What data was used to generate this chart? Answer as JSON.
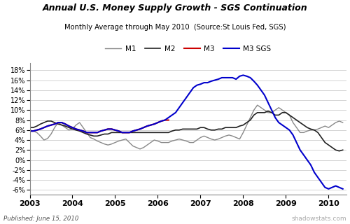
{
  "title": "Annual U.S. Money Supply Growth - SGS Continuation",
  "subtitle": "Monthly Average through May 2010  (Source:St Louis Fed, SGS)",
  "footer_left": "Published: June 15, 2010",
  "footer_right": "shadowstats.com",
  "yticks": [
    -6,
    -4,
    -2,
    0,
    2,
    4,
    6,
    8,
    10,
    12,
    14,
    16,
    18
  ],
  "ylim": [
    -7,
    19.5
  ],
  "xlim_start": 2003.0,
  "xlim_end": 2010.42,
  "xtick_labels": [
    "2003",
    "2004",
    "2005",
    "2006",
    "2007",
    "2008",
    "2009",
    "2010"
  ],
  "xtick_positions": [
    2003,
    2004,
    2005,
    2006,
    2007,
    2008,
    2009,
    2010
  ],
  "colors": {
    "M1": "#888888",
    "M2": "#222222",
    "M3": "#cc0000",
    "M3SGS": "#0000cc"
  },
  "M1": {
    "x": [
      2003.0,
      2003.083,
      2003.167,
      2003.25,
      2003.333,
      2003.417,
      2003.5,
      2003.583,
      2003.667,
      2003.75,
      2003.833,
      2003.917,
      2004.0,
      2004.083,
      2004.167,
      2004.25,
      2004.333,
      2004.417,
      2004.5,
      2004.583,
      2004.667,
      2004.75,
      2004.833,
      2004.917,
      2005.0,
      2005.083,
      2005.167,
      2005.25,
      2005.333,
      2005.417,
      2005.5,
      2005.583,
      2005.667,
      2005.75,
      2005.833,
      2005.917,
      2006.0,
      2006.083,
      2006.167,
      2006.25,
      2006.333,
      2006.417,
      2006.5,
      2006.583,
      2006.667,
      2006.75,
      2006.833,
      2006.917,
      2007.0,
      2007.083,
      2007.167,
      2007.25,
      2007.333,
      2007.417,
      2007.5,
      2007.583,
      2007.667,
      2007.75,
      2007.833,
      2007.917,
      2008.0,
      2008.083,
      2008.167,
      2008.25,
      2008.333,
      2008.417,
      2008.5,
      2008.583,
      2008.667,
      2008.75,
      2008.833,
      2008.917,
      2009.0,
      2009.083,
      2009.167,
      2009.25,
      2009.333,
      2009.417,
      2009.5,
      2009.583,
      2009.667,
      2009.75,
      2009.833,
      2009.917,
      2010.0,
      2010.083,
      2010.167,
      2010.25,
      2010.333
    ],
    "y": [
      6.0,
      5.8,
      5.5,
      4.8,
      4.0,
      4.3,
      5.2,
      6.5,
      7.5,
      7.0,
      6.5,
      6.0,
      6.2,
      7.0,
      7.5,
      6.5,
      5.5,
      4.5,
      4.2,
      3.8,
      3.5,
      3.2,
      3.0,
      3.2,
      3.5,
      3.8,
      4.0,
      4.2,
      3.5,
      2.8,
      2.5,
      2.2,
      2.5,
      3.0,
      3.5,
      4.0,
      3.8,
      3.5,
      3.5,
      3.5,
      3.8,
      4.0,
      4.2,
      4.0,
      3.8,
      3.5,
      3.5,
      4.0,
      4.5,
      4.8,
      4.5,
      4.2,
      4.0,
      4.2,
      4.5,
      4.8,
      5.0,
      4.8,
      4.5,
      4.2,
      5.5,
      7.0,
      8.5,
      10.0,
      11.0,
      10.5,
      10.0,
      9.5,
      9.5,
      10.0,
      10.5,
      10.0,
      9.5,
      9.0,
      7.5,
      6.5,
      5.5,
      5.5,
      5.8,
      6.0,
      6.0,
      6.2,
      6.5,
      6.8,
      6.5,
      7.0,
      7.5,
      7.8,
      7.5
    ]
  },
  "M2": {
    "x": [
      2003.0,
      2003.083,
      2003.167,
      2003.25,
      2003.333,
      2003.417,
      2003.5,
      2003.583,
      2003.667,
      2003.75,
      2003.833,
      2003.917,
      2004.0,
      2004.083,
      2004.167,
      2004.25,
      2004.333,
      2004.417,
      2004.5,
      2004.583,
      2004.667,
      2004.75,
      2004.833,
      2004.917,
      2005.0,
      2005.083,
      2005.167,
      2005.25,
      2005.333,
      2005.417,
      2005.5,
      2005.583,
      2005.667,
      2005.75,
      2005.833,
      2005.917,
      2006.0,
      2006.083,
      2006.167,
      2006.25,
      2006.333,
      2006.417,
      2006.5,
      2006.583,
      2006.667,
      2006.75,
      2006.833,
      2006.917,
      2007.0,
      2007.083,
      2007.167,
      2007.25,
      2007.333,
      2007.417,
      2007.5,
      2007.583,
      2007.667,
      2007.75,
      2007.833,
      2007.917,
      2008.0,
      2008.083,
      2008.167,
      2008.25,
      2008.333,
      2008.417,
      2008.5,
      2008.583,
      2008.667,
      2008.75,
      2008.833,
      2008.917,
      2009.0,
      2009.083,
      2009.167,
      2009.25,
      2009.333,
      2009.417,
      2009.5,
      2009.583,
      2009.667,
      2009.75,
      2009.833,
      2009.917,
      2010.0,
      2010.083,
      2010.167,
      2010.25,
      2010.333
    ],
    "y": [
      6.5,
      6.5,
      6.8,
      7.2,
      7.5,
      7.8,
      7.8,
      7.5,
      7.2,
      7.0,
      6.8,
      6.5,
      6.2,
      6.0,
      5.8,
      5.5,
      5.2,
      5.0,
      4.8,
      4.8,
      5.0,
      5.2,
      5.2,
      5.5,
      5.5,
      5.5,
      5.5,
      5.5,
      5.5,
      5.5,
      5.5,
      5.5,
      5.5,
      5.5,
      5.5,
      5.5,
      5.5,
      5.5,
      5.5,
      5.5,
      5.8,
      6.0,
      6.0,
      6.2,
      6.2,
      6.2,
      6.2,
      6.2,
      6.5,
      6.5,
      6.2,
      6.0,
      6.0,
      6.2,
      6.2,
      6.5,
      6.5,
      6.5,
      6.5,
      6.8,
      7.0,
      7.5,
      8.0,
      9.0,
      9.5,
      9.5,
      9.5,
      9.8,
      9.5,
      9.0,
      9.0,
      9.5,
      9.5,
      9.0,
      8.5,
      8.0,
      7.5,
      7.0,
      6.5,
      6.2,
      6.0,
      5.5,
      4.5,
      3.5,
      3.0,
      2.5,
      2.0,
      1.8,
      2.0
    ]
  },
  "M3": {
    "x": [
      2003.0,
      2003.083,
      2003.167,
      2003.25,
      2003.333,
      2003.417,
      2003.5,
      2003.583,
      2003.667,
      2003.75,
      2003.833,
      2003.917,
      2004.0,
      2004.083,
      2004.167,
      2004.25,
      2004.333,
      2004.417,
      2004.5,
      2004.583,
      2004.667,
      2004.75,
      2004.833,
      2004.917,
      2005.0,
      2005.083,
      2005.167,
      2005.25,
      2005.333,
      2005.417,
      2005.5,
      2005.583,
      2005.667,
      2005.75,
      2005.833,
      2005.917,
      2006.0,
      2006.083,
      2006.167,
      2006.25
    ],
    "y": [
      5.8,
      5.8,
      6.0,
      6.2,
      6.5,
      6.8,
      7.0,
      7.2,
      7.5,
      7.5,
      7.2,
      6.8,
      6.5,
      6.2,
      6.0,
      5.8,
      5.5,
      5.5,
      5.5,
      5.5,
      5.8,
      6.0,
      6.2,
      6.2,
      6.0,
      5.8,
      5.5,
      5.5,
      5.5,
      5.8,
      6.0,
      6.2,
      6.5,
      6.8,
      7.0,
      7.2,
      7.5,
      7.8,
      8.0,
      8.0
    ]
  },
  "M3SGS": {
    "x": [
      2003.0,
      2003.083,
      2003.167,
      2003.25,
      2003.333,
      2003.417,
      2003.5,
      2003.583,
      2003.667,
      2003.75,
      2003.833,
      2003.917,
      2004.0,
      2004.083,
      2004.167,
      2004.25,
      2004.333,
      2004.417,
      2004.5,
      2004.583,
      2004.667,
      2004.75,
      2004.833,
      2004.917,
      2005.0,
      2005.083,
      2005.167,
      2005.25,
      2005.333,
      2005.417,
      2005.5,
      2005.583,
      2005.667,
      2005.75,
      2005.833,
      2005.917,
      2006.0,
      2006.083,
      2006.167,
      2006.25,
      2006.333,
      2006.417,
      2006.5,
      2006.583,
      2006.667,
      2006.75,
      2006.833,
      2006.917,
      2007.0,
      2007.083,
      2007.167,
      2007.25,
      2007.333,
      2007.417,
      2007.5,
      2007.583,
      2007.667,
      2007.75,
      2007.833,
      2007.917,
      2008.0,
      2008.083,
      2008.167,
      2008.25,
      2008.333,
      2008.417,
      2008.5,
      2008.583,
      2008.667,
      2008.75,
      2008.833,
      2008.917,
      2009.0,
      2009.083,
      2009.167,
      2009.25,
      2009.333,
      2009.417,
      2009.5,
      2009.583,
      2009.667,
      2009.75,
      2009.833,
      2009.917,
      2010.0,
      2010.083,
      2010.167,
      2010.25,
      2010.333
    ],
    "y": [
      5.8,
      5.8,
      6.0,
      6.2,
      6.5,
      6.8,
      7.0,
      7.2,
      7.5,
      7.5,
      7.2,
      6.8,
      6.5,
      6.2,
      6.0,
      5.8,
      5.5,
      5.5,
      5.5,
      5.5,
      5.8,
      6.0,
      6.2,
      6.2,
      6.0,
      5.8,
      5.5,
      5.5,
      5.5,
      5.8,
      6.0,
      6.2,
      6.5,
      6.8,
      7.0,
      7.2,
      7.5,
      7.8,
      8.0,
      8.5,
      9.0,
      9.5,
      10.5,
      11.5,
      12.5,
      13.5,
      14.5,
      15.0,
      15.2,
      15.5,
      15.5,
      15.8,
      16.0,
      16.2,
      16.5,
      16.5,
      16.5,
      16.5,
      16.2,
      16.8,
      17.0,
      16.8,
      16.5,
      15.8,
      15.0,
      14.0,
      13.0,
      11.5,
      10.0,
      8.5,
      7.5,
      7.0,
      6.5,
      6.0,
      5.0,
      3.5,
      2.0,
      1.0,
      0.0,
      -1.0,
      -2.5,
      -3.5,
      -4.5,
      -5.5,
      -5.8,
      -5.5,
      -5.2,
      -5.5,
      -5.8
    ]
  }
}
